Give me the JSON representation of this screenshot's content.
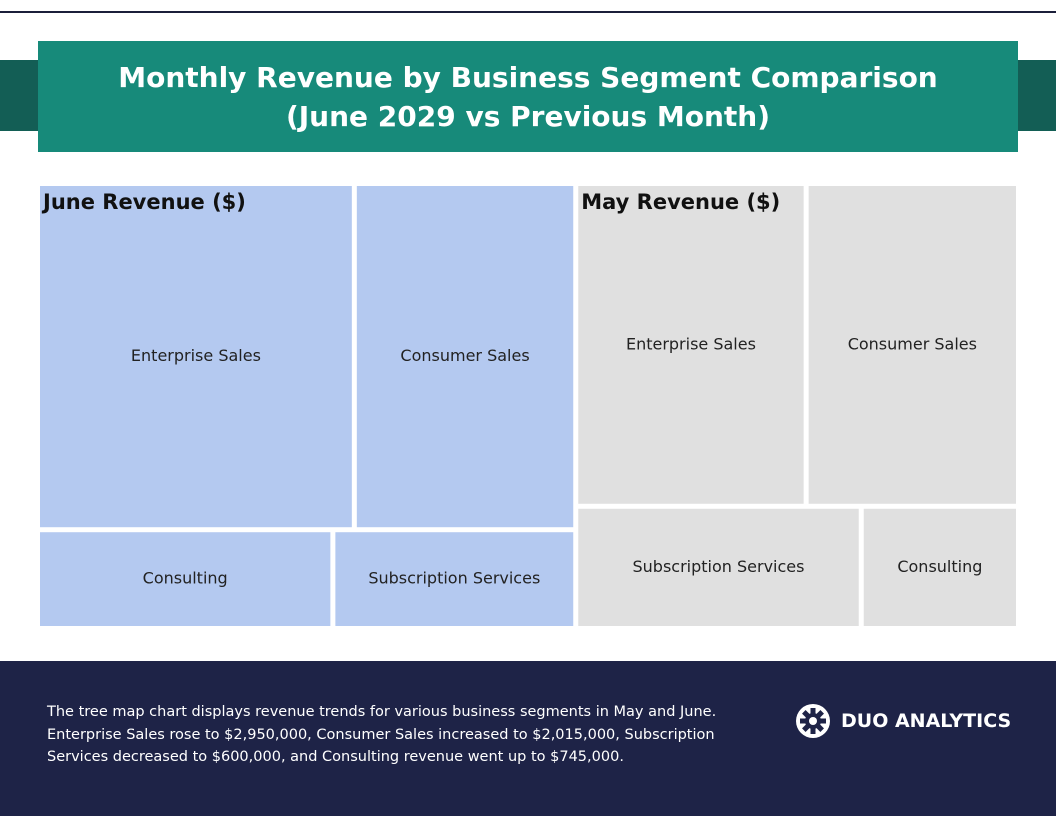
{
  "title_line1": "Monthly Revenue by Business Segment Comparison",
  "title_line2": "(June 2029 vs Previous Month)",
  "chart_data": [
    {
      "type": "treemap",
      "title": "June Revenue ($)",
      "categories": [
        "Enterprise Sales",
        "Consumer Sales",
        "Consulting",
        "Subscription Services"
      ],
      "values": [
        2950000,
        2015000,
        745000,
        600000
      ],
      "color": "#b4c9f0"
    },
    {
      "type": "treemap",
      "title": "May Revenue ($)",
      "categories": [
        "Enterprise Sales",
        "Consumer Sales",
        "Subscription Services",
        "Consulting"
      ],
      "values": [
        2000000,
        1800000,
        900000,
        480000
      ],
      "color": "#e0e0e0"
    }
  ],
  "footer": {
    "text": "The tree map chart displays revenue trends for various business segments in May and June. Enterprise Sales rose to $2,950,000, Consumer Sales increased to $2,015,000, Subscription Services decreased to $600,000, and Consulting revenue went up to $745,000.",
    "brand": "DUO ANALYTICS"
  }
}
